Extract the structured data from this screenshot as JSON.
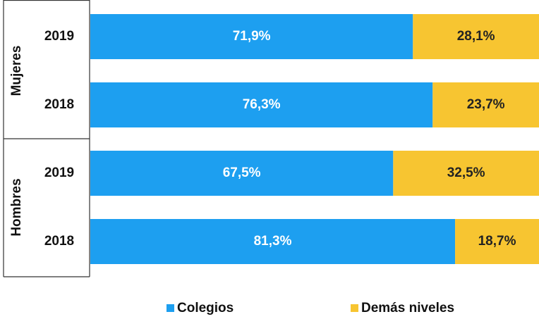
{
  "chart_data": {
    "type": "stacked-bar-horizontal",
    "groups": [
      {
        "name": "Mujeres",
        "categories": [
          "2019",
          "2018"
        ]
      },
      {
        "name": "Hombres",
        "categories": [
          "2019",
          "2018"
        ]
      }
    ],
    "series": [
      {
        "name": "Colegios",
        "color": "#1d9ff0",
        "label_color": "#ffffff",
        "values": [
          71.9,
          76.3,
          67.5,
          81.3
        ],
        "value_labels": [
          "71,9%",
          "76,3%",
          "67,5%",
          "81,3%"
        ]
      },
      {
        "name": "Demás niveles",
        "color": "#f7c531",
        "label_color": "#222222",
        "values": [
          28.1,
          23.7,
          32.5,
          18.7
        ],
        "value_labels": [
          "28,1%",
          "23,7%",
          "32,5%",
          "18,7%"
        ]
      }
    ],
    "xlim": [
      0,
      100
    ]
  }
}
